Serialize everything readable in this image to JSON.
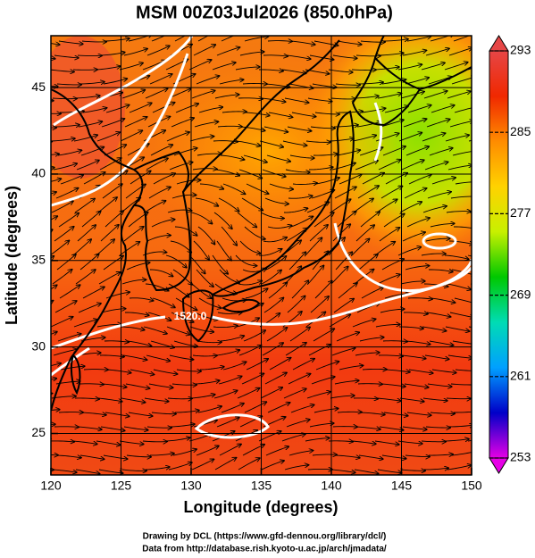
{
  "chart_data": {
    "type": "map",
    "title": "MSM 00Z03Jul2026 (850.0hPa)",
    "xlabel": "Longitude (degrees)",
    "ylabel": "Latitude  (degrees)",
    "xlim": [
      120,
      150
    ],
    "ylim": [
      22.6,
      48.0
    ],
    "xticks": [
      120,
      125,
      130,
      135,
      140,
      145,
      150
    ],
    "yticks": [
      25,
      30,
      35,
      40,
      45
    ],
    "grid": true,
    "contour_label": "1520.0",
    "colorbar": {
      "lim": [
        253,
        293
      ],
      "ticks": [
        253,
        261,
        269,
        277,
        285,
        293
      ],
      "colors": [
        "#e600e6",
        "#0000c8",
        "#00a0ff",
        "#00dcb4",
        "#00c800",
        "#c8f000",
        "#ffd200",
        "#ff8c00",
        "#f02800",
        "#e64646"
      ]
    },
    "credits": [
      "Drawing by DCL (https://www.gfd-dennou.org/library/dcl/)",
      "Data from http://database.rish.kyoto-u.ac.jp/arch/jmadata/"
    ]
  }
}
